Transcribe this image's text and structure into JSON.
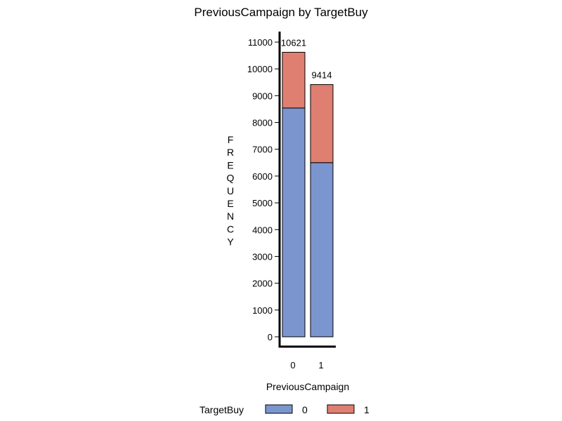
{
  "chart_data": {
    "type": "bar",
    "stacked": true,
    "title": "PreviousCampaign by TargetBuy",
    "xlabel": "PreviousCampaign",
    "ylabel": "FREQUENCY",
    "categories": [
      "0",
      "1"
    ],
    "series": [
      {
        "name": "0",
        "color": "#7b96cf",
        "values": [
          8540,
          6500
        ]
      },
      {
        "name": "1",
        "color": "#df7f71",
        "values": [
          2081,
          2914
        ]
      }
    ],
    "totals": [
      "10621",
      "9414"
    ],
    "ylim": [
      0,
      11000
    ],
    "yticks": [
      0,
      1000,
      2000,
      3000,
      4000,
      5000,
      6000,
      7000,
      8000,
      9000,
      10000,
      11000
    ],
    "grid": false,
    "legend": {
      "title": "TargetBuy",
      "position": "bottom",
      "entries": [
        "0",
        "1"
      ]
    }
  }
}
